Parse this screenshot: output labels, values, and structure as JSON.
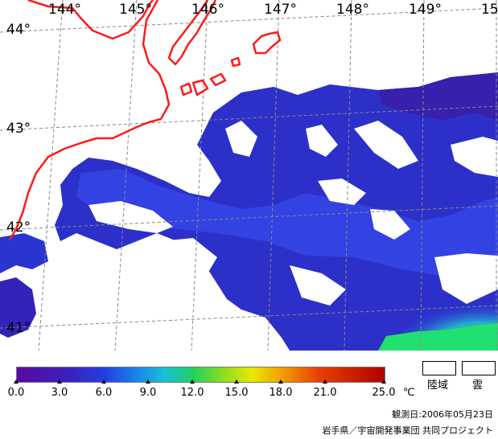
{
  "map": {
    "longitude_labels": [
      "144°",
      "145°",
      "146°",
      "147°",
      "148°",
      "149°",
      "15"
    ],
    "latitude_labels": [
      "44°",
      "43°",
      "42°",
      "41°"
    ],
    "colors": {
      "coastline": "#ff1a1a",
      "cold_water": "#3222c0",
      "mid_water": "#2a3ce0",
      "warm_water": "#22e070",
      "grid": "#888888"
    }
  },
  "colorbar": {
    "ticks": [
      "0.0",
      "3.0",
      "6.0",
      "9.0",
      "12.0",
      "15.0",
      "18.0",
      "21.0",
      "25.0"
    ],
    "unit": "℃",
    "range": [
      0,
      25
    ]
  },
  "legend": {
    "land_label": "陸域",
    "cloud_label": "雲"
  },
  "footer": {
    "observation_date": "観測日:2006年05月23日",
    "credit": "岩手県／宇宙開発事業団 共同プロジェクト"
  }
}
